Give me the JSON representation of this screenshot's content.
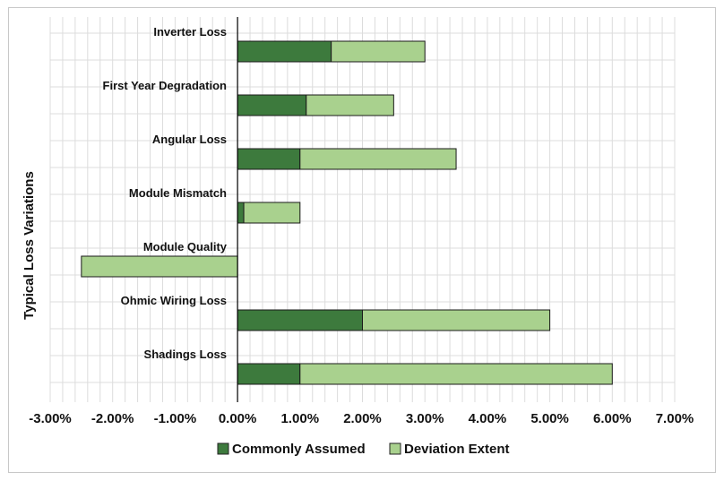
{
  "chart_data": {
    "type": "bar",
    "orientation": "horizontal",
    "stacked": true,
    "ylabel": "Typical Loss Variations",
    "xlabel": "",
    "xlim": [
      -0.03,
      0.07
    ],
    "x_ticks": [
      "-3.00%",
      "-2.00%",
      "-1.00%",
      "0.00%",
      "1.00%",
      "2.00%",
      "3.00%",
      "4.00%",
      "5.00%",
      "6.00%",
      "7.00%"
    ],
    "grid": true,
    "legend_position": "bottom",
    "categories": [
      "Inverter Loss",
      "First Year Degradation",
      "Angular Loss",
      "Module Mismatch",
      "Module Quality",
      "Ohmic Wiring Loss",
      "Shadings Loss"
    ],
    "series": [
      {
        "name": "Commonly Assumed",
        "color": "#3d7a3d",
        "values": [
          0.015,
          0.011,
          0.01,
          0.001,
          0.0,
          0.02,
          0.01
        ]
      },
      {
        "name": "Deviation Extent",
        "color": "#a9d18e",
        "values": [
          0.015,
          0.014,
          0.025,
          0.009,
          -0.025,
          0.03,
          0.05
        ]
      }
    ]
  }
}
